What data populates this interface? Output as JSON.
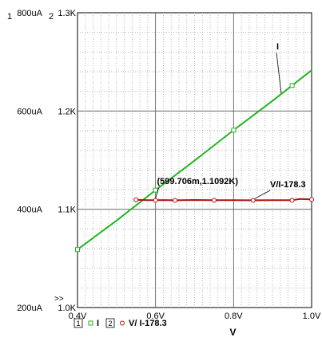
{
  "chart_data": {
    "type": "line",
    "xlabel": "V",
    "x_ticks": [
      "0.4V",
      "0.6V",
      "0.8V",
      "1.0V"
    ],
    "x_tick_values": [
      0.4,
      0.6,
      0.8,
      1.0
    ],
    "xlim": [
      0.4,
      1.0
    ],
    "grid": true,
    "axis_numbers": [
      "1",
      "2"
    ],
    "more_marker": ">>",
    "y_axes": [
      {
        "id": "1",
        "unit": "uA",
        "ylim": [
          200,
          800
        ],
        "ticks": [
          "800uA",
          "600uA",
          "400uA",
          "200uA"
        ],
        "tick_values": [
          800,
          600,
          400,
          200
        ]
      },
      {
        "id": "2",
        "unit": "K",
        "ylim": [
          1.0,
          1.3
        ],
        "ticks": [
          "1.3K",
          "1.2K",
          "1.1K",
          "1.0K"
        ],
        "tick_values": [
          1.3,
          1.2,
          1.1,
          1.0
        ]
      }
    ],
    "series": [
      {
        "name": "I",
        "axis": "1",
        "color": "#22b522",
        "marker": "square",
        "legend_index": "1",
        "x": [
          0.4,
          0.5,
          0.6,
          0.7,
          0.8,
          0.9,
          0.95,
          1.0
        ],
        "y": [
          318,
          377,
          439,
          499,
          561,
          621,
          652,
          683
        ]
      },
      {
        "name": "V/ I-178.3",
        "label": "V/I-178.3",
        "axis": "2",
        "color": "#b01010",
        "marker": "circle",
        "legend_index": "2",
        "x": [
          0.55,
          0.58,
          0.6,
          0.62,
          0.65,
          0.7,
          0.75,
          0.8,
          0.85,
          0.9,
          0.95,
          0.97,
          1.0
        ],
        "y": [
          1.1097,
          1.1093,
          1.1092,
          1.1094,
          1.1091,
          1.1095,
          1.1092,
          1.1093,
          1.1091,
          1.1093,
          1.1092,
          1.1104,
          1.11
        ]
      }
    ],
    "annotations": [
      {
        "text": "(599.706m,1.1092K)",
        "x": 0.5997,
        "y": 1.1092
      }
    ]
  }
}
